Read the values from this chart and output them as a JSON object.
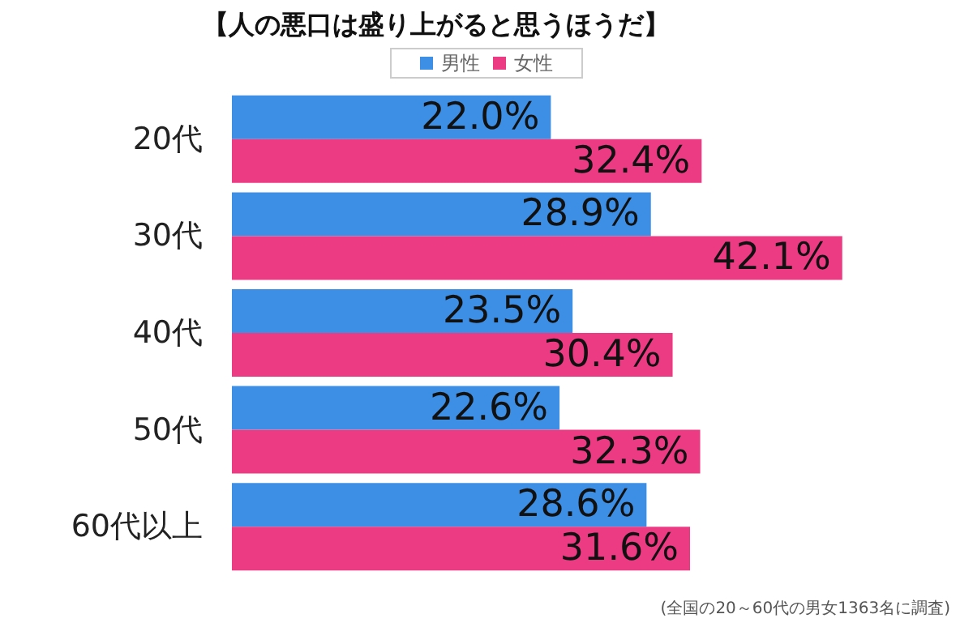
{
  "chart_data": {
    "type": "bar",
    "orientation": "horizontal",
    "title": "【人の悪口は盛り上がると思うほうだ】",
    "categories": [
      "20代",
      "30代",
      "40代",
      "50代",
      "60代以上"
    ],
    "series": [
      {
        "name": "男性",
        "color": "#3d8fe6",
        "values": [
          22.0,
          28.9,
          23.5,
          22.6,
          28.6
        ],
        "value_labels": [
          "22.0%",
          "28.9%",
          "23.5%",
          "22.6%",
          "28.6%"
        ]
      },
      {
        "name": "女性",
        "color": "#ec3b83",
        "values": [
          32.4,
          42.1,
          30.4,
          32.3,
          31.6
        ],
        "value_labels": [
          "32.4%",
          "42.1%",
          "30.4%",
          "32.3%",
          "31.6%"
        ]
      }
    ],
    "tick_labels": "y",
    "legend": "top",
    "annotations": [
      "(全国の20～60代の男女1363名に調査)"
    ]
  }
}
